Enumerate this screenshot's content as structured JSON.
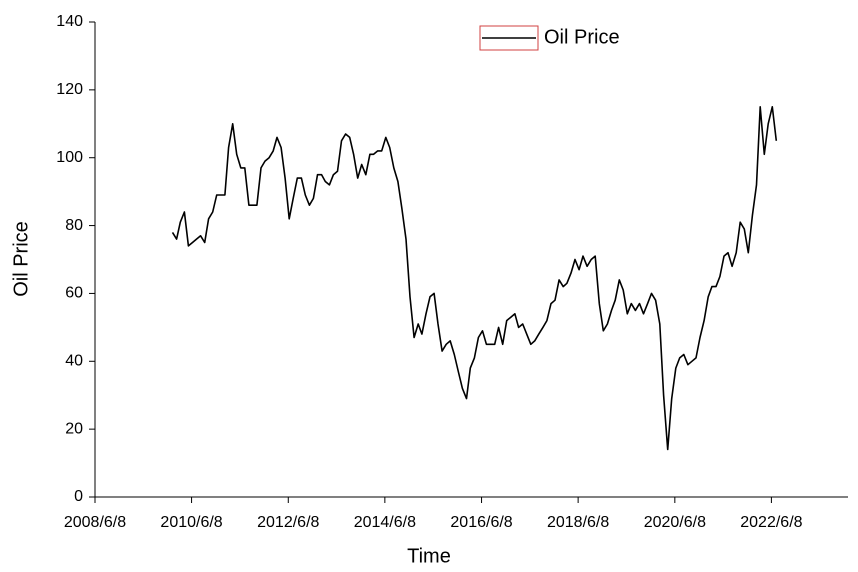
{
  "chart_data": {
    "type": "line",
    "xlabel": "Time",
    "ylabel": "Oil Price",
    "x": [
      "2010/1/15",
      "2010/2/15",
      "2010/3/15",
      "2010/4/15",
      "2010/5/15",
      "2010/6/15",
      "2010/7/15",
      "2010/8/15",
      "2010/9/15",
      "2010/10/15",
      "2010/11/15",
      "2010/12/15",
      "2011/1/15",
      "2011/2/15",
      "2011/3/15",
      "2011/4/15",
      "2011/5/15",
      "2011/6/15",
      "2011/7/15",
      "2011/8/15",
      "2011/9/15",
      "2011/10/15",
      "2011/11/15",
      "2011/12/15",
      "2012/1/15",
      "2012/2/15",
      "2012/3/15",
      "2012/4/15",
      "2012/5/15",
      "2012/6/15",
      "2012/7/15",
      "2012/8/15",
      "2012/9/15",
      "2012/10/15",
      "2012/11/15",
      "2012/12/15",
      "2013/1/15",
      "2013/2/15",
      "2013/3/15",
      "2013/4/15",
      "2013/5/15",
      "2013/6/15",
      "2013/7/15",
      "2013/8/15",
      "2013/9/15",
      "2013/10/15",
      "2013/11/15",
      "2013/12/15",
      "2014/1/15",
      "2014/2/15",
      "2014/3/15",
      "2014/4/15",
      "2014/5/15",
      "2014/6/15",
      "2014/7/15",
      "2014/8/15",
      "2014/9/15",
      "2014/10/15",
      "2014/11/15",
      "2014/12/15",
      "2015/1/15",
      "2015/2/15",
      "2015/3/15",
      "2015/4/15",
      "2015/5/15",
      "2015/6/15",
      "2015/7/15",
      "2015/8/15",
      "2015/9/15",
      "2015/10/15",
      "2015/11/15",
      "2015/12/15",
      "2016/1/15",
      "2016/2/15",
      "2016/3/15",
      "2016/4/15",
      "2016/5/15",
      "2016/6/15",
      "2016/7/15",
      "2016/8/15",
      "2016/9/15",
      "2016/10/15",
      "2016/11/15",
      "2016/12/15",
      "2017/1/15",
      "2017/2/15",
      "2017/3/15",
      "2017/4/15",
      "2017/5/15",
      "2017/6/15",
      "2017/7/15",
      "2017/8/15",
      "2017/9/15",
      "2017/10/15",
      "2017/11/15",
      "2017/12/15",
      "2018/1/15",
      "2018/2/15",
      "2018/3/15",
      "2018/4/15",
      "2018/5/15",
      "2018/6/15",
      "2018/7/15",
      "2018/8/15",
      "2018/9/15",
      "2018/10/15",
      "2018/11/15",
      "2018/12/15",
      "2019/1/15",
      "2019/2/15",
      "2019/3/15",
      "2019/4/15",
      "2019/5/15",
      "2019/6/15",
      "2019/7/15",
      "2019/8/15",
      "2019/9/15",
      "2019/10/15",
      "2019/11/15",
      "2019/12/15",
      "2020/1/15",
      "2020/2/15",
      "2020/3/15",
      "2020/4/15",
      "2020/5/15",
      "2020/6/15",
      "2020/7/15",
      "2020/8/15",
      "2020/9/15",
      "2020/10/15",
      "2020/11/15",
      "2020/12/15",
      "2021/1/15",
      "2021/2/15",
      "2021/3/15",
      "2021/4/15",
      "2021/5/15",
      "2021/6/15",
      "2021/7/15",
      "2021/8/15",
      "2021/9/15",
      "2021/10/15",
      "2021/11/15",
      "2021/12/15",
      "2022/1/15",
      "2022/2/15",
      "2022/3/15",
      "2022/4/15",
      "2022/5/15",
      "2022/6/15",
      "2022/7/15"
    ],
    "series": [
      {
        "name": "Oil Price",
        "color": "#000000",
        "values": [
          78,
          76,
          81,
          84,
          74,
          75,
          76,
          77,
          75,
          82,
          84,
          89,
          89,
          89,
          103,
          110,
          101,
          97,
          97,
          86,
          86,
          86,
          97,
          99,
          100,
          102,
          106,
          103,
          94,
          82,
          88,
          94,
          94,
          89,
          86,
          88,
          95,
          95,
          93,
          92,
          95,
          96,
          105,
          107,
          106,
          101,
          94,
          98,
          95,
          101,
          101,
          102,
          102,
          106,
          103,
          97,
          93,
          85,
          76,
          59,
          47,
          51,
          48,
          54,
          59,
          60,
          51,
          43,
          45,
          46,
          42,
          37,
          32,
          29,
          38,
          41,
          47,
          49,
          45,
          45,
          45,
          50,
          45,
          52,
          53,
          54,
          50,
          51,
          48,
          45,
          46,
          48,
          50,
          52,
          57,
          58,
          64,
          62,
          63,
          66,
          70,
          67,
          71,
          68,
          70,
          71,
          57,
          49,
          51,
          55,
          58,
          64,
          61,
          54,
          57,
          55,
          57,
          54,
          57,
          60,
          58,
          51,
          30,
          14,
          29,
          38,
          41,
          42,
          39,
          40,
          41,
          47,
          52,
          59,
          62,
          62,
          65,
          71,
          72,
          68,
          72,
          81,
          79,
          72,
          83,
          92,
          115,
          101,
          110,
          115,
          105
        ]
      }
    ],
    "xlim": [
      "2008/6/8",
      "2024/1/8"
    ],
    "xticks": [
      "2008/6/8",
      "2010/6/8",
      "2012/6/8",
      "2014/6/8",
      "2016/6/8",
      "2018/6/8",
      "2020/6/8",
      "2022/6/8"
    ],
    "ylim": [
      0,
      140
    ],
    "yticks": [
      0,
      20,
      40,
      60,
      80,
      100,
      120,
      140
    ],
    "legend": "top"
  }
}
